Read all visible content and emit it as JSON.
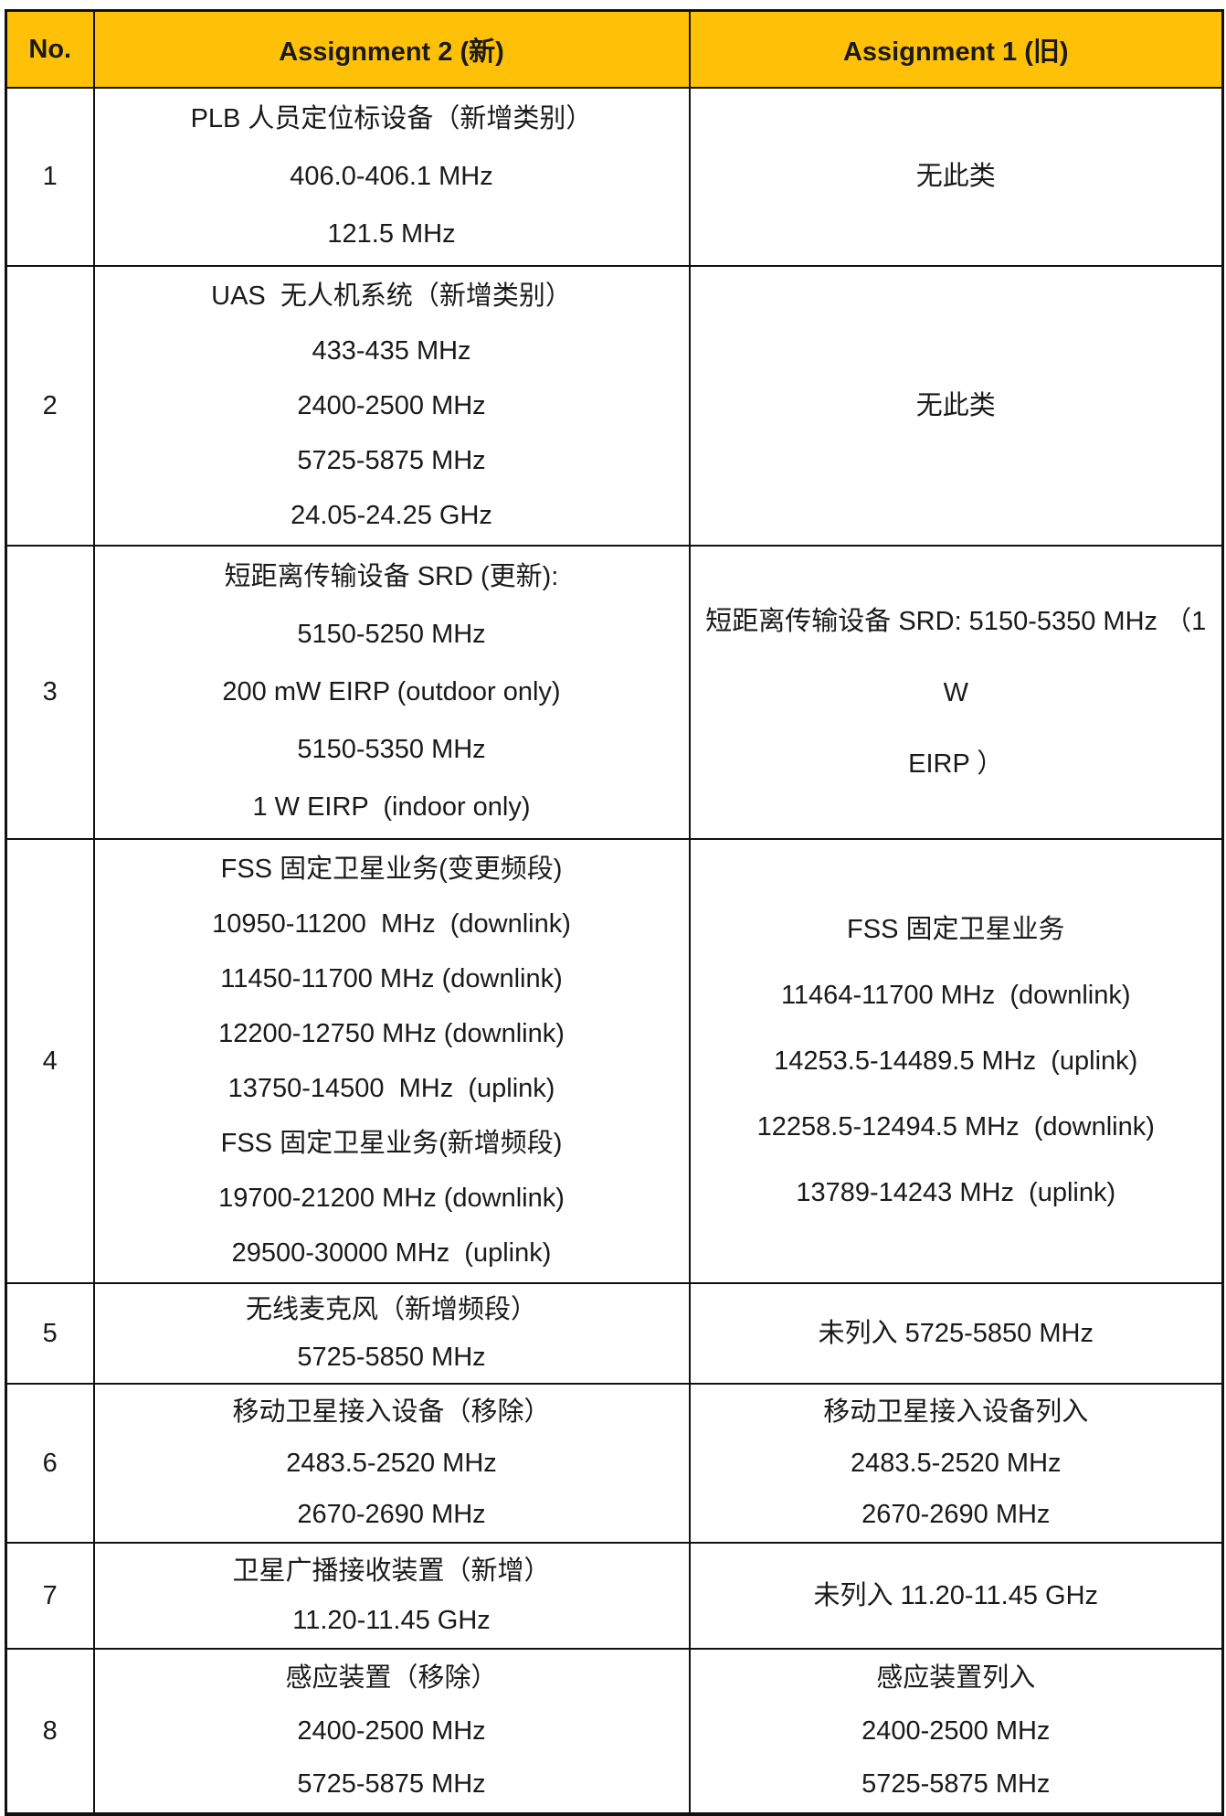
{
  "colors": {
    "header_bg": "#FFC107",
    "border": "#111111",
    "text": "#1A1A1A"
  },
  "table": {
    "header": {
      "no": "No.",
      "col2": "Assignment 2 (新)",
      "col3": "Assignment 1 (旧)"
    },
    "rows": [
      {
        "no": "1",
        "a2": [
          "PLB 人员定位标设备（新增类别）",
          "406.0-406.1 MHz",
          "121.5 MHz"
        ],
        "a1": [
          "无此类"
        ]
      },
      {
        "no": "2",
        "a2": [
          "UAS  无人机系统（新增类别）",
          "433-435 MHz",
          "2400-2500 MHz",
          "5725-5875 MHz",
          "24.05-24.25 GHz"
        ],
        "a1": [
          "无此类"
        ]
      },
      {
        "no": "3",
        "a2": [
          "短距离传输设备 SRD (更新):",
          "5150-5250 MHz",
          "200 mW EIRP (outdoor only)",
          "5150-5350 MHz",
          "1 W EIRP  (indoor only)"
        ],
        "a1": [
          "短距离传输设备 SRD: 5150-5350 MHz （1 W",
          "EIRP ）"
        ]
      },
      {
        "no": "4",
        "a2": [
          "FSS 固定卫星业务(变更频段)",
          "10950-11200  MHz  (downlink)",
          "11450-11700 MHz (downlink)",
          "12200-12750 MHz (downlink)",
          "13750-14500  MHz  (uplink)",
          "FSS 固定卫星业务(新增频段)",
          "19700-21200 MHz (downlink)",
          "29500-30000 MHz  (uplink)"
        ],
        "a1": [
          "FSS 固定卫星业务",
          "11464-11700 MHz  (downlink)",
          "14253.5-14489.5 MHz  (uplink)",
          "12258.5-12494.5 MHz  (downlink)",
          "13789-14243 MHz  (uplink)"
        ]
      },
      {
        "no": "5",
        "a2": [
          "无线麦克风（新增频段）",
          "5725-5850 MHz"
        ],
        "a1": [
          "未列入 5725-5850 MHz"
        ]
      },
      {
        "no": "6",
        "a2": [
          "移动卫星接入设备（移除）",
          "2483.5-2520 MHz",
          "2670-2690 MHz"
        ],
        "a1": [
          "移动卫星接入设备列入",
          "2483.5-2520 MHz",
          "2670-2690 MHz"
        ]
      },
      {
        "no": "7",
        "a2": [
          "卫星广播接收装置（新增）",
          "11.20-11.45 GHz"
        ],
        "a1": [
          "未列入 11.20-11.45 GHz"
        ]
      },
      {
        "no": "8",
        "a2": [
          "感应装置（移除）",
          "2400-2500 MHz",
          "5725-5875 MHz"
        ],
        "a1": [
          "感应装置列入",
          "2400-2500 MHz",
          "5725-5875 MHz"
        ]
      }
    ]
  }
}
